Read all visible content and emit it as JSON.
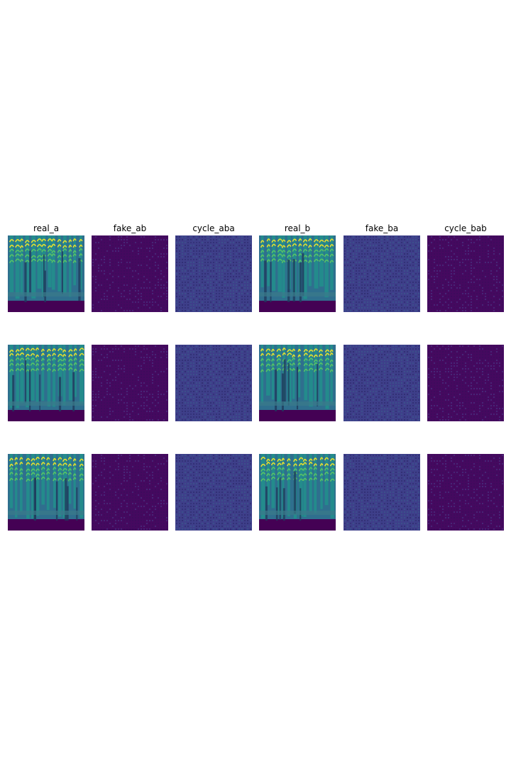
{
  "figure": {
    "column_titles": [
      "real_a",
      "fake_ab",
      "cycle_aba",
      "real_b",
      "fake_ba",
      "cycle_bab"
    ],
    "rows": 3,
    "colormap": "viridis",
    "colors": {
      "background": "#ffffff",
      "viridis_low": "#440154",
      "viridis_mid_low": "#3b528b",
      "viridis_mid": "#21918c",
      "viridis_mid_high": "#5ec962",
      "viridis_high": "#fde725"
    },
    "panel_kinds": {
      "real_a": "spectrogram",
      "fake_ab": "noise-dark",
      "cycle_aba": "noise-grid",
      "real_b": "spectrogram",
      "fake_ba": "noise-grid",
      "cycle_bab": "noise-dark"
    }
  }
}
